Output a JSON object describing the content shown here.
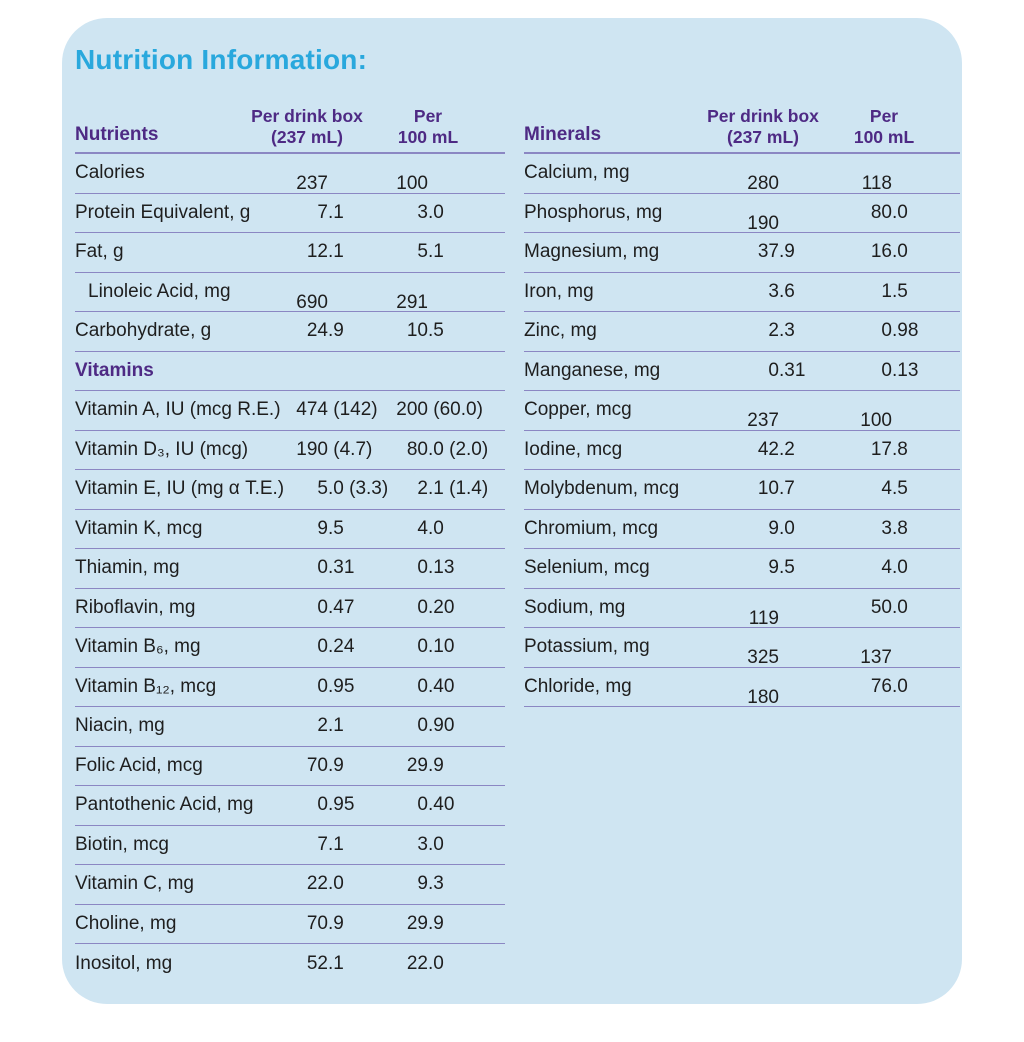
{
  "title": "Nutrition Information:",
  "colors": {
    "panel_background": "#cfe5f2",
    "title_text": "#29a8dd",
    "header_text": "#4e2a84",
    "body_text": "#1e1e1e",
    "divider_line": "#8b87c3"
  },
  "left_table": {
    "header": "Nutrients",
    "col_headers": {
      "per_box": [
        "Per drink box",
        "(237 mL)"
      ],
      "per_100": [
        "Per",
        "100 mL"
      ]
    },
    "rows": [
      {
        "label": "Calories",
        "per_box": "237",
        "per_100": "100"
      },
      {
        "label": "Protein Equivalent, g",
        "per_box": "7.1",
        "per_100": "3.0"
      },
      {
        "label": "Fat, g",
        "per_box": "12.1",
        "per_100": "5.1"
      },
      {
        "label": "Linoleic Acid, mg",
        "indent": true,
        "per_box": "690",
        "per_100": "291"
      },
      {
        "label": "Carbohydrate, g",
        "per_box": "24.9",
        "per_100": "10.5"
      },
      {
        "section": "Vitamins"
      },
      {
        "label": "Vitamin A, IU (mcg R.E.)",
        "per_box": "474 (142)",
        "per_100": "200 (60.0)"
      },
      {
        "label": "Vitamin D₃, IU (mcg)",
        "per_box": "190 (4.7)",
        "per_100": "80.0 (2.0)"
      },
      {
        "label": "Vitamin E, IU (mg α T.E.)",
        "per_box": "5.0 (3.3)",
        "per_100": "2.1 (1.4)"
      },
      {
        "label": "Vitamin K, mcg",
        "per_box": "9.5",
        "per_100": "4.0"
      },
      {
        "label": "Thiamin, mg",
        "per_box": "0.31",
        "per_100": "0.13"
      },
      {
        "label": "Riboflavin, mg",
        "per_box": "0.47",
        "per_100": "0.20"
      },
      {
        "label": "Vitamin B₆, mg",
        "per_box": "0.24",
        "per_100": "0.10"
      },
      {
        "label": "Vitamin B₁₂, mcg",
        "per_box": "0.95",
        "per_100": "0.40"
      },
      {
        "label": "Niacin, mg",
        "per_box": "2.1",
        "per_100": "0.90"
      },
      {
        "label": "Folic Acid, mcg",
        "per_box": "70.9",
        "per_100": "29.9"
      },
      {
        "label": "Pantothenic Acid, mg",
        "per_box": "0.95",
        "per_100": "0.40"
      },
      {
        "label": "Biotin, mcg",
        "per_box": "7.1",
        "per_100": "3.0"
      },
      {
        "label": "Vitamin C, mg",
        "per_box": "22.0",
        "per_100": "9.3"
      },
      {
        "label": "Choline, mg",
        "per_box": "70.9",
        "per_100": "29.9"
      },
      {
        "label": "Inositol, mg",
        "per_box": "52.1",
        "per_100": "22.0"
      }
    ]
  },
  "right_table": {
    "header": "Minerals",
    "col_headers": {
      "per_box": [
        "Per drink box",
        "(237 mL)"
      ],
      "per_100": [
        "Per",
        "100 mL"
      ]
    },
    "rows": [
      {
        "label": "Calcium, mg",
        "per_box": "280",
        "per_100": "118"
      },
      {
        "label": "Phosphorus, mg",
        "per_box": "190",
        "per_100": "80.0"
      },
      {
        "label": "Magnesium, mg",
        "per_box": "37.9",
        "per_100": "16.0"
      },
      {
        "label": "Iron, mg",
        "per_box": "3.6",
        "per_100": "1.5"
      },
      {
        "label": "Zinc, mg",
        "per_box": "2.3",
        "per_100": "0.98"
      },
      {
        "label": "Manganese, mg",
        "per_box": "0.31",
        "per_100": "0.13"
      },
      {
        "label": "Copper, mcg",
        "per_box": "237",
        "per_100": "100"
      },
      {
        "label": "Iodine, mcg",
        "per_box": "42.2",
        "per_100": "17.8"
      },
      {
        "label": "Molybdenum, mcg",
        "per_box": "10.7",
        "per_100": "4.5"
      },
      {
        "label": "Chromium, mcg",
        "per_box": "9.0",
        "per_100": "3.8"
      },
      {
        "label": "Selenium, mcg",
        "per_box": "9.5",
        "per_100": "4.0"
      },
      {
        "label": "Sodium, mg",
        "per_box": "119",
        "per_100": "50.0"
      },
      {
        "label": "Potassium, mg",
        "per_box": "325",
        "per_100": "137"
      },
      {
        "label": "Chloride, mg",
        "per_box": "180",
        "per_100": "76.0"
      }
    ]
  }
}
